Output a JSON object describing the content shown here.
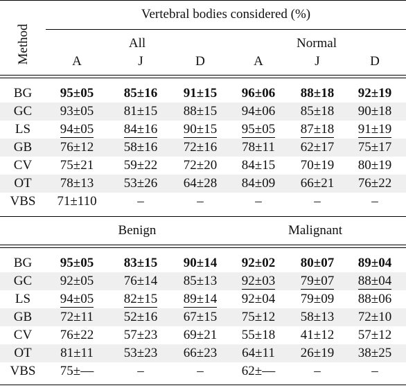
{
  "header": {
    "method_label": "Method",
    "title": "Vertebral bodies considered (%)",
    "group_all": "All",
    "group_normal": "Normal",
    "group_benign": "Benign",
    "group_malignant": "Malignant",
    "cols": [
      "A",
      "J",
      "D",
      "A",
      "J",
      "D"
    ]
  },
  "table1": [
    {
      "method": "BG",
      "values": [
        "95±05",
        "85±16",
        "91±15",
        "96±06",
        "88±18",
        "92±19"
      ],
      "style": [
        "b",
        "b",
        "b",
        "b",
        "b",
        "b"
      ]
    },
    {
      "method": "GC",
      "values": [
        "93±05",
        "81±15",
        "88±15",
        "94±06",
        "85±18",
        "90±18"
      ],
      "style": [
        "",
        "",
        "",
        "",
        "",
        ""
      ]
    },
    {
      "method": "LS",
      "values": [
        "94±05",
        "84±16",
        "90±15",
        "95±05",
        "87±18",
        "91±19"
      ],
      "style": [
        "u",
        "u",
        "u",
        "u",
        "u",
        "u"
      ]
    },
    {
      "method": "GB",
      "values": [
        "76±12",
        "58±16",
        "72±16",
        "78±11",
        "62±17",
        "75±17"
      ],
      "style": [
        "",
        "",
        "",
        "",
        "",
        ""
      ]
    },
    {
      "method": "CV",
      "values": [
        "75±21",
        "59±22",
        "72±20",
        "84±15",
        "70±19",
        "80±19"
      ],
      "style": [
        "",
        "",
        "",
        "",
        "",
        ""
      ]
    },
    {
      "method": "OT",
      "values": [
        "78±13",
        "53±26",
        "64±28",
        "84±09",
        "66±21",
        "76±22"
      ],
      "style": [
        "",
        "",
        "",
        "",
        "",
        ""
      ]
    },
    {
      "method": "VBS",
      "values": [
        "71±110",
        "–",
        "–",
        "–",
        "–",
        "–"
      ],
      "style": [
        "",
        "",
        "",
        "",
        "",
        ""
      ]
    }
  ],
  "table2": [
    {
      "method": "BG",
      "values": [
        "95±05",
        "83±15",
        "90±14",
        "92±02",
        "80±07",
        "89±04"
      ],
      "style": [
        "b",
        "b",
        "b",
        "b",
        "b",
        "b"
      ]
    },
    {
      "method": "GC",
      "values": [
        "92±05",
        "76±14",
        "85±13",
        "92±03",
        "79±07",
        "88±04"
      ],
      "style": [
        "",
        "",
        "",
        "u",
        "u",
        "u"
      ]
    },
    {
      "method": "LS",
      "values": [
        "94±05",
        "82±15",
        "89±14",
        "92±04",
        "79±09",
        "88±06"
      ],
      "style": [
        "u",
        "u",
        "u",
        "",
        "",
        ""
      ]
    },
    {
      "method": "GB",
      "values": [
        "72±11",
        "52±16",
        "67±15",
        "75±12",
        "58±13",
        "72±10"
      ],
      "style": [
        "",
        "",
        "",
        "",
        "",
        ""
      ]
    },
    {
      "method": "CV",
      "values": [
        "76±22",
        "57±23",
        "69±21",
        "55±18",
        "41±12",
        "57±12"
      ],
      "style": [
        "",
        "",
        "",
        "",
        "",
        ""
      ]
    },
    {
      "method": "OT",
      "values": [
        "81±11",
        "53±23",
        "66±23",
        "64±11",
        "26±19",
        "38±25"
      ],
      "style": [
        "",
        "",
        "",
        "",
        "",
        ""
      ]
    },
    {
      "method": "VBS",
      "values": [
        "75±—",
        "–",
        "–",
        "62±—",
        "–",
        "–"
      ],
      "style": [
        "",
        "",
        "",
        "",
        "",
        ""
      ]
    }
  ]
}
